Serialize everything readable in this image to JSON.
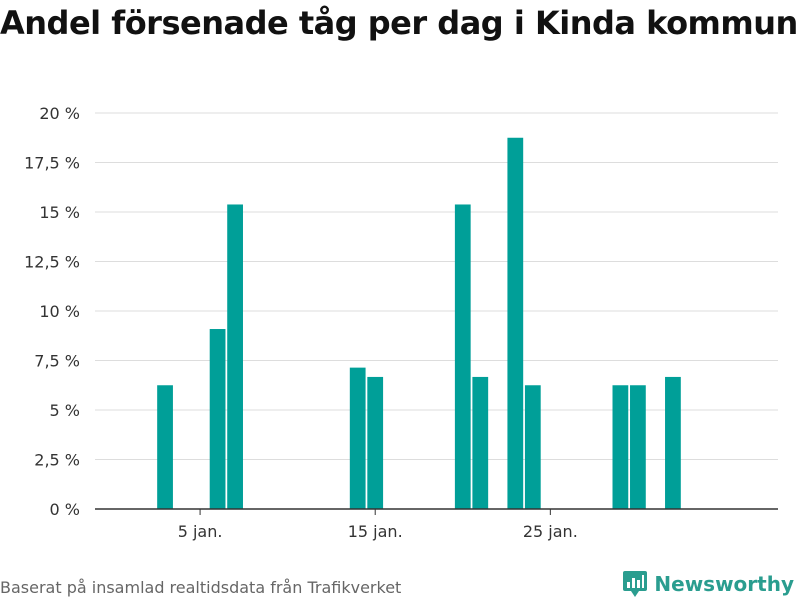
{
  "title": "Andel försenade tåg per dag i Kinda kommun",
  "footer": "Baserat på insamlad realtidsdata från Trafikverket",
  "brand": {
    "name": "Newsworthy",
    "icon": "newsworthy-logo-icon",
    "color": "#2a9d8f"
  },
  "colors": {
    "bar": "#009f98",
    "grid": "#dddddd",
    "axis": "#333333"
  },
  "chart_data": {
    "type": "bar",
    "x": [
      3,
      6,
      7,
      14,
      15,
      20,
      21,
      23,
      24,
      29,
      30,
      32
    ],
    "values": [
      6.25,
      9.09,
      15.38,
      7.14,
      6.67,
      15.38,
      6.67,
      18.75,
      6.25,
      6.25,
      6.25,
      6.67
    ],
    "ylim": [
      0,
      20
    ],
    "yticks": [
      0,
      2.5,
      5,
      7.5,
      10,
      12.5,
      15,
      17.5,
      20
    ],
    "ytick_labels": [
      "0 %",
      "2,5 %",
      "5 %",
      "7,5 %",
      "10 %",
      "12,5 %",
      "15 %",
      "17,5 %",
      "20 %"
    ],
    "xticks": [
      5,
      15,
      25
    ],
    "xtick_labels": [
      "5 jan.",
      "15 jan.",
      "25 jan."
    ],
    "xlim": [
      -1,
      38
    ],
    "grid": true,
    "xlabel": "",
    "ylabel": ""
  }
}
